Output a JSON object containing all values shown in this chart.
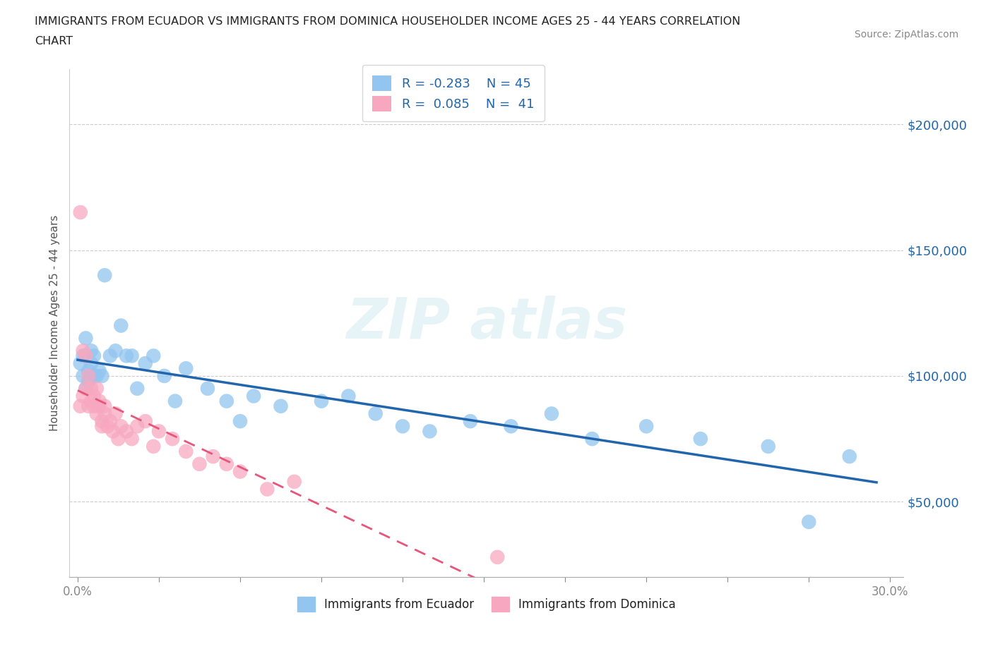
{
  "title_line1": "IMMIGRANTS FROM ECUADOR VS IMMIGRANTS FROM DOMINICA HOUSEHOLDER INCOME AGES 25 - 44 YEARS CORRELATION",
  "title_line2": "CHART",
  "source_text": "Source: ZipAtlas.com",
  "ylabel": "Householder Income Ages 25 - 44 years",
  "xlim": [
    -0.003,
    0.305
  ],
  "ylim": [
    20000,
    222000
  ],
  "yticks": [
    50000,
    100000,
    150000,
    200000
  ],
  "ytick_labels": [
    "$50,000",
    "$100,000",
    "$150,000",
    "$200,000"
  ],
  "xticks": [
    0.0,
    0.03,
    0.06,
    0.09,
    0.12,
    0.15,
    0.18,
    0.21,
    0.24,
    0.27,
    0.3
  ],
  "ecuador_color": "#92C5F0",
  "dominica_color": "#F7A8C0",
  "ecuador_line_color": "#2166AC",
  "dominica_line_color": "#E8547A",
  "ecuador_R": -0.283,
  "ecuador_N": 45,
  "dominica_R": 0.085,
  "dominica_N": 41,
  "watermark": "ZIP atlas",
  "ecuador_x": [
    0.001,
    0.002,
    0.002,
    0.003,
    0.003,
    0.004,
    0.004,
    0.005,
    0.005,
    0.006,
    0.006,
    0.007,
    0.008,
    0.009,
    0.01,
    0.012,
    0.014,
    0.016,
    0.018,
    0.02,
    0.022,
    0.025,
    0.028,
    0.032,
    0.036,
    0.04,
    0.048,
    0.055,
    0.06,
    0.065,
    0.075,
    0.09,
    0.1,
    0.11,
    0.12,
    0.13,
    0.145,
    0.16,
    0.175,
    0.19,
    0.21,
    0.23,
    0.255,
    0.27,
    0.285
  ],
  "ecuador_y": [
    105000,
    100000,
    108000,
    95000,
    115000,
    102000,
    98000,
    110000,
    105000,
    100000,
    108000,
    100000,
    102000,
    100000,
    140000,
    108000,
    110000,
    120000,
    108000,
    108000,
    95000,
    105000,
    108000,
    100000,
    90000,
    103000,
    95000,
    90000,
    82000,
    92000,
    88000,
    90000,
    92000,
    85000,
    80000,
    78000,
    82000,
    80000,
    85000,
    75000,
    80000,
    75000,
    72000,
    42000,
    68000
  ],
  "dominica_x": [
    0.001,
    0.001,
    0.002,
    0.002,
    0.003,
    0.003,
    0.004,
    0.004,
    0.005,
    0.005,
    0.006,
    0.006,
    0.007,
    0.007,
    0.008,
    0.008,
    0.009,
    0.009,
    0.01,
    0.01,
    0.011,
    0.012,
    0.013,
    0.014,
    0.015,
    0.016,
    0.018,
    0.02,
    0.022,
    0.025,
    0.028,
    0.03,
    0.035,
    0.04,
    0.045,
    0.05,
    0.055,
    0.06,
    0.07,
    0.08,
    0.155
  ],
  "dominica_y": [
    165000,
    88000,
    110000,
    92000,
    108000,
    95000,
    100000,
    88000,
    95000,
    90000,
    92000,
    88000,
    95000,
    85000,
    90000,
    88000,
    82000,
    80000,
    85000,
    88000,
    80000,
    82000,
    78000,
    85000,
    75000,
    80000,
    78000,
    75000,
    80000,
    82000,
    72000,
    78000,
    75000,
    70000,
    65000,
    68000,
    65000,
    62000,
    55000,
    58000,
    28000
  ]
}
